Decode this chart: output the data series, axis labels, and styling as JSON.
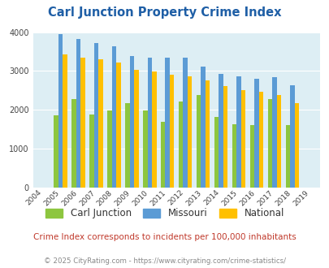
{
  "title": "Carl Junction Property Crime Index",
  "subtitle": "Crime Index corresponds to incidents per 100,000 inhabitants",
  "copyright": "© 2025 CityRating.com - https://www.cityrating.com/crime-statistics/",
  "years": [
    2004,
    2005,
    2006,
    2007,
    2008,
    2009,
    2010,
    2011,
    2012,
    2013,
    2014,
    2015,
    2016,
    2017,
    2018,
    2019
  ],
  "carl_junction": [
    0,
    1870,
    2280,
    1880,
    1975,
    2180,
    1975,
    1700,
    2210,
    2390,
    1820,
    1640,
    1610,
    2280,
    1610,
    0
  ],
  "missouri": [
    0,
    3940,
    3820,
    3730,
    3630,
    3390,
    3350,
    3340,
    3340,
    3120,
    2920,
    2860,
    2800,
    2840,
    2630,
    0
  ],
  "national": [
    0,
    3420,
    3340,
    3300,
    3210,
    3040,
    2980,
    2900,
    2870,
    2750,
    2620,
    2510,
    2460,
    2390,
    2180,
    0
  ],
  "bar_color_cj": "#8dc63f",
  "bar_color_mo": "#5b9bd5",
  "bar_color_na": "#ffc000",
  "bg_color": "#ddeef4",
  "title_color": "#1f5fa6",
  "subtitle_color": "#c0392b",
  "copyright_color": "#888888",
  "ylim": [
    0,
    4000
  ],
  "yticks": [
    0,
    1000,
    2000,
    3000,
    4000
  ]
}
